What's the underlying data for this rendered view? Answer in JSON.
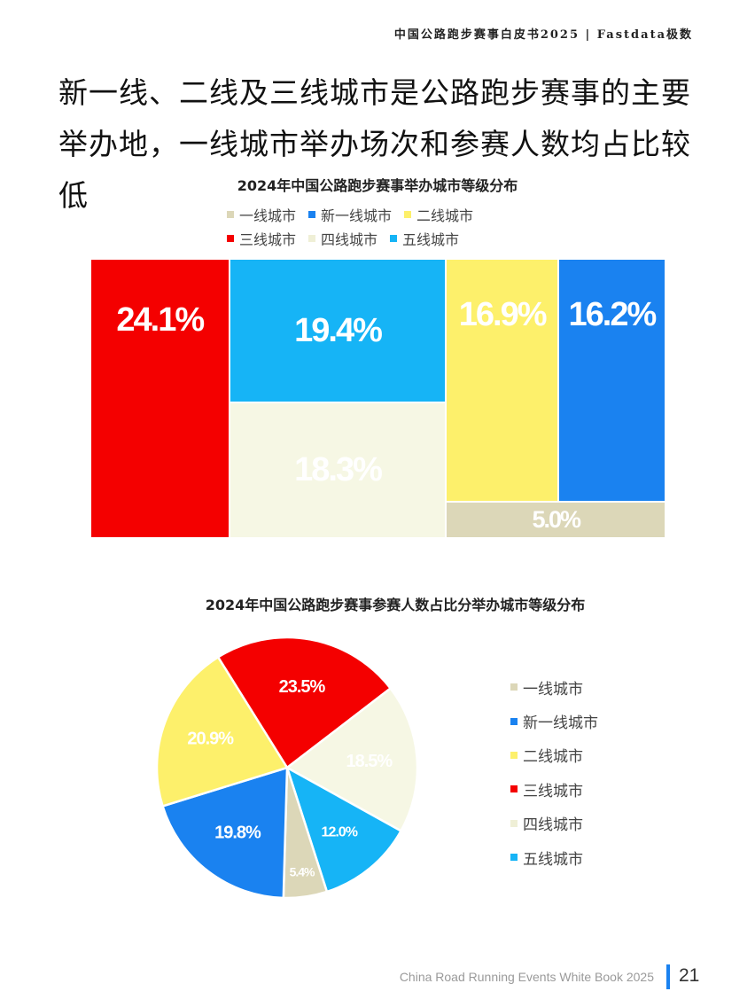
{
  "header": {
    "report_title": "中国公路跑步赛事白皮书2025 | Fastdata极数"
  },
  "headline": "新一线、二线及三线城市是公路跑步赛事的主要举办地，一线城市举办场次和参赛人数均占比较低",
  "colors": {
    "tier1": "#dcd7b8",
    "new_tier1": "#1a82f0",
    "tier2": "#fdf06b",
    "tier3": "#f40000",
    "tier4": "#f6f7e4",
    "tier5": "#16b4f6"
  },
  "chart_data": [
    {
      "type": "treemap",
      "title": "2024年中国公路跑步赛事举办城市等级分布",
      "legend": [
        "一线城市",
        "新一线城市",
        "二线城市",
        "三线城市",
        "四线城市",
        "五线城市"
      ],
      "legend_placement": "top",
      "items": [
        {
          "name": "三线城市",
          "value": 24.1,
          "label": "24.1%",
          "color_key": "tier3"
        },
        {
          "name": "五线城市",
          "value": 19.4,
          "label": "19.4%",
          "color_key": "tier5"
        },
        {
          "name": "四线城市",
          "value": 18.3,
          "label": "18.3%",
          "color_key": "tier4"
        },
        {
          "name": "二线城市",
          "value": 16.9,
          "label": "16.9%",
          "color_key": "tier2"
        },
        {
          "name": "新一线城市",
          "value": 16.2,
          "label": "16.2%",
          "color_key": "new_tier1"
        },
        {
          "name": "一线城市",
          "value": 5.0,
          "label": "5.0%",
          "color_key": "tier1"
        }
      ]
    },
    {
      "type": "pie",
      "title": "2024年中国公路跑步赛事参赛人数占比分举办城市等级分布",
      "legend": [
        "一线城市",
        "新一线城市",
        "二线城市",
        "三线城市",
        "四线城市",
        "五线城市"
      ],
      "legend_placement": "right",
      "slices": [
        {
          "name": "三线城市",
          "value": 23.5,
          "label": "23.5%",
          "color_key": "tier3"
        },
        {
          "name": "四线城市",
          "value": 18.5,
          "label": "18.5%",
          "color_key": "tier4"
        },
        {
          "name": "五线城市",
          "value": 12.0,
          "label": "12.0%",
          "color_key": "tier5"
        },
        {
          "name": "一线城市",
          "value": 5.4,
          "label": "5.4%",
          "color_key": "tier1"
        },
        {
          "name": "新一线城市",
          "value": 19.8,
          "label": "19.8%",
          "color_key": "new_tier1"
        },
        {
          "name": "二线城市",
          "value": 20.9,
          "label": "20.9%",
          "color_key": "tier2"
        }
      ]
    }
  ],
  "footer": {
    "book_title": "China Road Running Events White Book 2025",
    "page_number": "21"
  }
}
